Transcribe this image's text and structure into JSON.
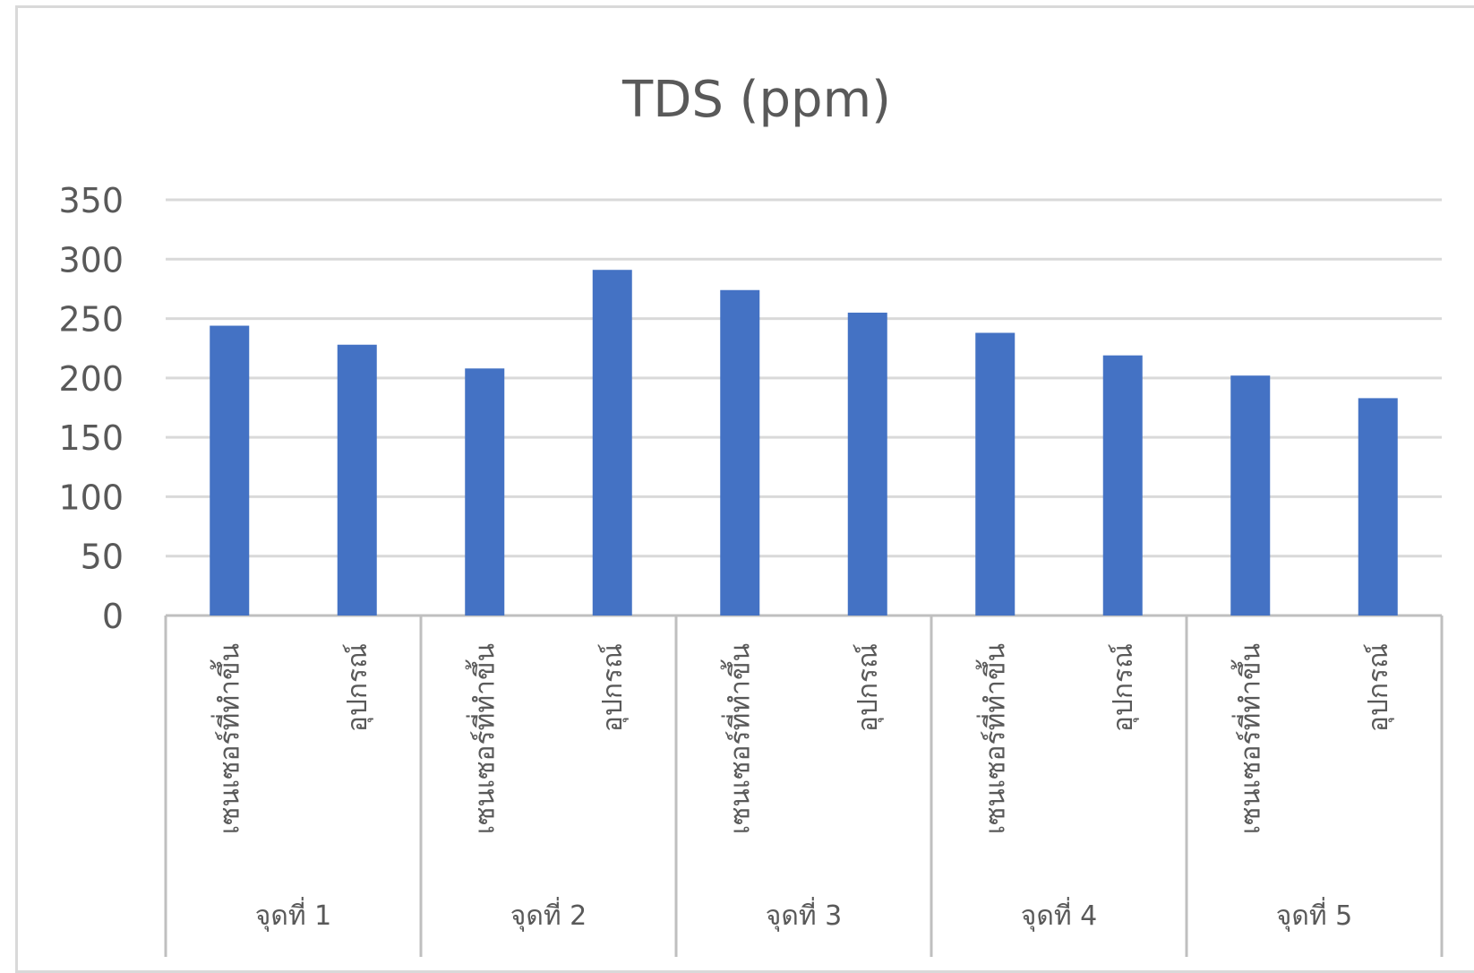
{
  "chart_data": {
    "type": "bar",
    "title": "TDS (ppm)",
    "xlabel": "",
    "ylabel": "",
    "ylim": [
      0,
      350
    ],
    "yticks": [
      0,
      50,
      100,
      150,
      200,
      250,
      300,
      350
    ],
    "grid": true,
    "legend": "none",
    "bar_color": "#4472C4",
    "groups": [
      "จุดที่ 1",
      "จุดที่ 2",
      "จุดที่ 3",
      "จุดที่ 4",
      "จุดที่ 5"
    ],
    "sub_categories": [
      "เซนเซอร์ที่ทำขึ้น",
      "อุปกรณ์"
    ],
    "values": [
      244,
      228,
      208,
      291,
      274,
      255,
      238,
      219,
      202,
      183
    ]
  }
}
